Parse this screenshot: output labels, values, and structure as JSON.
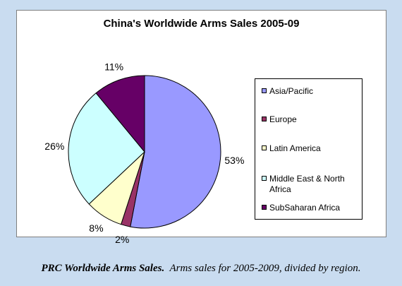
{
  "chart_data": {
    "type": "pie",
    "title": "China's Worldwide Arms Sales 2005-09",
    "categories": [
      "Asia/Pacific",
      "Europe",
      "Latin America",
      "Middle East & North Africa",
      "SubSaharan Africa"
    ],
    "values": [
      53,
      2,
      8,
      26,
      11
    ],
    "value_labels": [
      "53%",
      "2%",
      "8%",
      "26%",
      "11%"
    ],
    "colors": [
      "#9999ff",
      "#993366",
      "#ffffcc",
      "#ccffff",
      "#660066"
    ],
    "legend_position": "right"
  },
  "caption": {
    "bold": "PRC Worldwide Arms Sales.",
    "text": "Arms sales for 2005-2009, divided by region."
  }
}
